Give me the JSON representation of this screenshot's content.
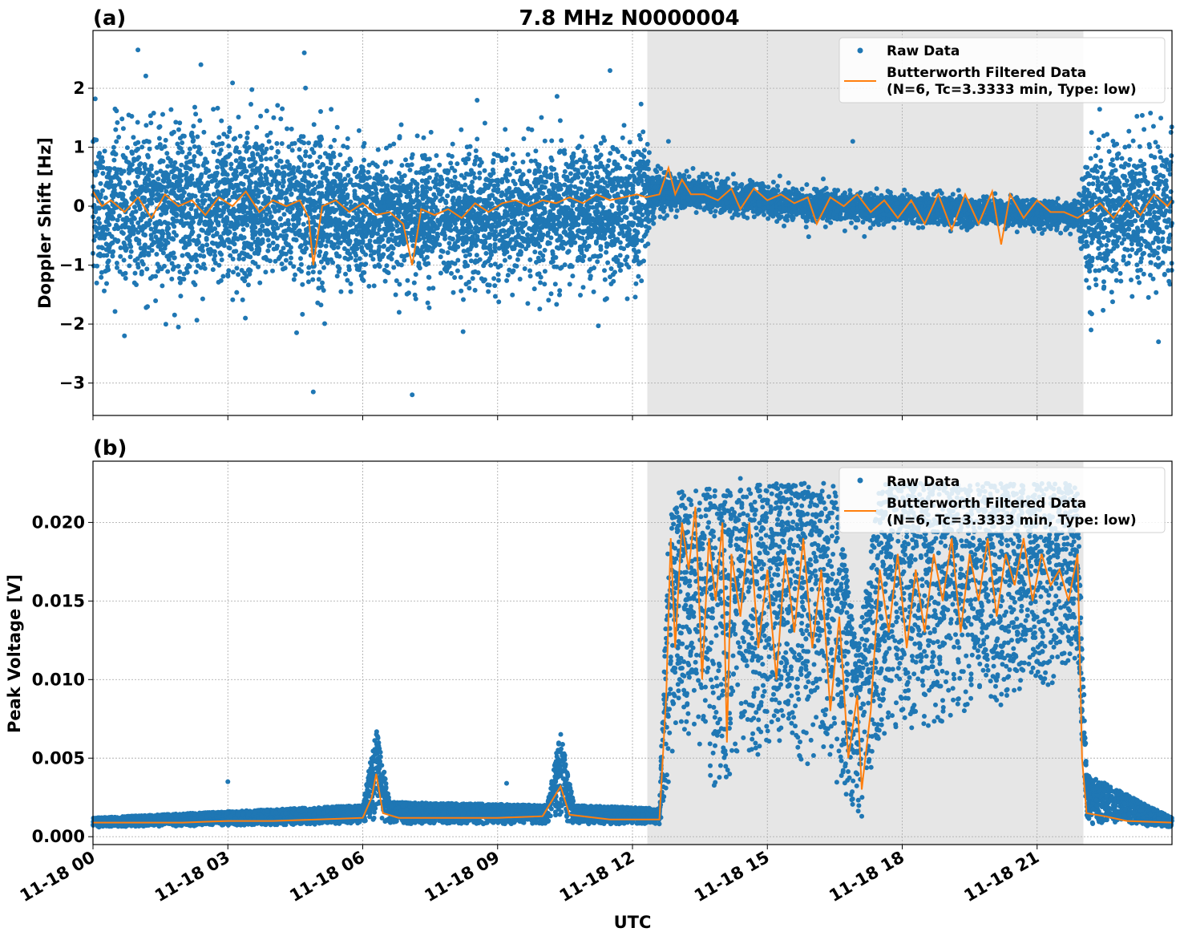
{
  "figure": {
    "title": "7.8 MHz N0000004",
    "xlabel": "UTC"
  },
  "colors": {
    "raw": "#1f77b4",
    "filtered": "#ff7f0e",
    "night_shade": "#e6e6e6",
    "grid": "#b0b0b0"
  },
  "legend": {
    "raw": "Raw Data",
    "filtered_line1": "Butterworth Filtered Data",
    "filtered_line2": "(N=6, Tc=3.3333 min, Type: low)"
  },
  "chart_data": [
    {
      "type": "scatter",
      "panel_label": "(a)",
      "title": "7.8 MHz N0000004",
      "ylabel": "Doppler Shift [Hz]",
      "xlabel": "",
      "x_unit": "hours UTC on 11-18",
      "xlim": [
        0,
        24
      ],
      "ylim": [
        -3.55,
        2.98
      ],
      "yticks": [
        -3,
        -2,
        -1,
        0,
        1,
        2
      ],
      "ytick_labels": [
        "−3",
        "−2",
        "−1",
        "0",
        "1",
        "2"
      ],
      "grid": true,
      "shaded_region": [
        12.33,
        22.03
      ],
      "legend_position": "upper right",
      "series": [
        {
          "name": "Raw Data",
          "style": "points",
          "envelope": [
            {
              "x": 0.0,
              "center": 0.0,
              "spread": 1.3
            },
            {
              "x": 4.8,
              "center": 0.0,
              "spread": 1.25
            },
            {
              "x": 6.2,
              "center": -0.2,
              "spread": 1.0
            },
            {
              "x": 10.5,
              "center": -0.1,
              "spread": 1.05
            },
            {
              "x": 12.2,
              "center": 0.0,
              "spread": 1.2
            },
            {
              "x": 12.4,
              "center": 0.2,
              "spread": 0.4
            },
            {
              "x": 13.0,
              "center": 0.25,
              "spread": 0.25
            },
            {
              "x": 16.0,
              "center": 0.0,
              "spread": 0.25
            },
            {
              "x": 21.9,
              "center": -0.15,
              "spread": 0.2
            },
            {
              "x": 22.1,
              "center": -0.2,
              "spread": 1.1
            },
            {
              "x": 24.0,
              "center": 0.0,
              "spread": 1.2
            }
          ],
          "outliers": [
            [
              1.0,
              2.65
            ],
            [
              0.7,
              -2.2
            ],
            [
              4.9,
              -3.15
            ],
            [
              4.7,
              2.6
            ],
            [
              7.1,
              -3.2
            ],
            [
              2.4,
              2.4
            ],
            [
              11.5,
              2.3
            ],
            [
              1.9,
              -2.05
            ],
            [
              12.8,
              1.1
            ],
            [
              16.9,
              1.1
            ],
            [
              22.2,
              -2.1
            ],
            [
              23.7,
              -2.3
            ]
          ]
        },
        {
          "name": "Butterworth Filtered Data (N=6, Tc=3.3333 min, Type: low)",
          "style": "line",
          "points": [
            [
              0.0,
              0.25
            ],
            [
              0.2,
              0.0
            ],
            [
              0.4,
              0.1
            ],
            [
              0.7,
              -0.1
            ],
            [
              1.0,
              0.15
            ],
            [
              1.3,
              -0.2
            ],
            [
              1.6,
              0.2
            ],
            [
              1.9,
              0.0
            ],
            [
              2.2,
              0.1
            ],
            [
              2.5,
              -0.15
            ],
            [
              2.8,
              0.15
            ],
            [
              3.1,
              0.0
            ],
            [
              3.4,
              0.25
            ],
            [
              3.7,
              -0.1
            ],
            [
              4.0,
              0.1
            ],
            [
              4.3,
              0.0
            ],
            [
              4.6,
              0.1
            ],
            [
              4.8,
              -0.2
            ],
            [
              4.9,
              -1.0
            ],
            [
              5.1,
              0.0
            ],
            [
              5.4,
              0.1
            ],
            [
              5.7,
              -0.1
            ],
            [
              6.0,
              0.05
            ],
            [
              6.3,
              -0.15
            ],
            [
              6.6,
              -0.1
            ],
            [
              6.9,
              -0.3
            ],
            [
              7.1,
              -1.0
            ],
            [
              7.3,
              -0.05
            ],
            [
              7.6,
              -0.15
            ],
            [
              7.9,
              -0.05
            ],
            [
              8.2,
              -0.2
            ],
            [
              8.5,
              0.05
            ],
            [
              8.8,
              -0.1
            ],
            [
              9.1,
              0.05
            ],
            [
              9.4,
              0.1
            ],
            [
              9.7,
              0.0
            ],
            [
              10.0,
              0.1
            ],
            [
              10.3,
              0.05
            ],
            [
              10.6,
              0.15
            ],
            [
              10.9,
              0.05
            ],
            [
              11.2,
              0.2
            ],
            [
              11.5,
              0.1
            ],
            [
              11.8,
              0.15
            ],
            [
              12.1,
              0.2
            ],
            [
              12.3,
              0.15
            ],
            [
              12.6,
              0.2
            ],
            [
              12.8,
              0.65
            ],
            [
              12.95,
              0.2
            ],
            [
              13.1,
              0.45
            ],
            [
              13.3,
              0.2
            ],
            [
              13.6,
              0.2
            ],
            [
              13.9,
              0.1
            ],
            [
              14.2,
              0.3
            ],
            [
              14.4,
              -0.05
            ],
            [
              14.7,
              0.3
            ],
            [
              15.0,
              0.1
            ],
            [
              15.3,
              0.2
            ],
            [
              15.6,
              0.05
            ],
            [
              15.9,
              0.15
            ],
            [
              16.1,
              -0.3
            ],
            [
              16.4,
              0.15
            ],
            [
              16.7,
              0.0
            ],
            [
              17.0,
              0.2
            ],
            [
              17.3,
              -0.1
            ],
            [
              17.6,
              0.1
            ],
            [
              17.9,
              -0.2
            ],
            [
              18.2,
              0.1
            ],
            [
              18.5,
              -0.3
            ],
            [
              18.8,
              0.2
            ],
            [
              19.1,
              -0.4
            ],
            [
              19.4,
              0.2
            ],
            [
              19.7,
              -0.3
            ],
            [
              20.0,
              0.25
            ],
            [
              20.2,
              -0.65
            ],
            [
              20.4,
              0.2
            ],
            [
              20.7,
              -0.2
            ],
            [
              21.0,
              0.1
            ],
            [
              21.3,
              -0.1
            ],
            [
              21.6,
              -0.1
            ],
            [
              21.9,
              -0.2
            ],
            [
              22.1,
              -0.1
            ],
            [
              22.4,
              0.05
            ],
            [
              22.7,
              -0.2
            ],
            [
              23.0,
              0.1
            ],
            [
              23.3,
              -0.15
            ],
            [
              23.6,
              0.2
            ],
            [
              23.9,
              0.0
            ],
            [
              24.0,
              0.1
            ]
          ]
        }
      ]
    },
    {
      "type": "scatter",
      "panel_label": "(b)",
      "title": "",
      "ylabel": "Peak Voltage [V]",
      "xlabel": "UTC",
      "x_unit": "hours UTC on 11-18",
      "xlim": [
        0,
        24
      ],
      "ylim": [
        -0.0005,
        0.0239
      ],
      "yticks": [
        0.0,
        0.005,
        0.01,
        0.015,
        0.02
      ],
      "ytick_labels": [
        "0.000",
        "0.005",
        "0.010",
        "0.015",
        "0.020"
      ],
      "xticks": [
        0,
        3,
        6,
        9,
        12,
        15,
        18,
        21
      ],
      "xtick_labels": [
        "11-18 00",
        "11-18 03",
        "11-18 06",
        "11-18 09",
        "11-18 12",
        "11-18 15",
        "11-18 18",
        "11-18 21"
      ],
      "grid": true,
      "shaded_region": [
        12.33,
        22.03
      ],
      "legend_position": "upper right",
      "series": [
        {
          "name": "Raw Data",
          "style": "points",
          "envelope": [
            {
              "x": 0.0,
              "lo": 0.0006,
              "hi": 0.0012
            },
            {
              "x": 6.0,
              "lo": 0.0008,
              "hi": 0.002
            },
            {
              "x": 6.3,
              "lo": 0.001,
              "hi": 0.0069
            },
            {
              "x": 6.6,
              "lo": 0.0008,
              "hi": 0.0022
            },
            {
              "x": 10.1,
              "lo": 0.0008,
              "hi": 0.002
            },
            {
              "x": 10.4,
              "lo": 0.0012,
              "hi": 0.0068
            },
            {
              "x": 10.7,
              "lo": 0.0008,
              "hi": 0.002
            },
            {
              "x": 12.6,
              "lo": 0.0008,
              "hi": 0.0018
            },
            {
              "x": 12.8,
              "lo": 0.003,
              "hi": 0.02
            },
            {
              "x": 13.0,
              "lo": 0.007,
              "hi": 0.0225
            },
            {
              "x": 14.0,
              "lo": 0.002,
              "hi": 0.022
            },
            {
              "x": 15.0,
              "lo": 0.006,
              "hi": 0.0225
            },
            {
              "x": 16.5,
              "lo": 0.003,
              "hi": 0.0225
            },
            {
              "x": 17.0,
              "lo": 0.0012,
              "hi": 0.012
            },
            {
              "x": 17.5,
              "lo": 0.006,
              "hi": 0.0225
            },
            {
              "x": 20.0,
              "lo": 0.008,
              "hi": 0.0225
            },
            {
              "x": 21.9,
              "lo": 0.01,
              "hi": 0.0225
            },
            {
              "x": 22.1,
              "lo": 0.0008,
              "hi": 0.004
            },
            {
              "x": 24.0,
              "lo": 0.0006,
              "hi": 0.0012
            }
          ],
          "outliers": [
            [
              3.0,
              0.0035
            ],
            [
              9.2,
              0.0034
            ],
            [
              14.4,
              0.0228
            ],
            [
              17.1,
              0.0013
            ]
          ]
        },
        {
          "name": "Butterworth Filtered Data (N=6, Tc=3.3333 min, Type: low)",
          "style": "line",
          "points": [
            [
              0.0,
              0.0009
            ],
            [
              1.0,
              0.0009
            ],
            [
              2.0,
              0.0009
            ],
            [
              3.0,
              0.001
            ],
            [
              4.0,
              0.001
            ],
            [
              5.0,
              0.0011
            ],
            [
              6.0,
              0.0012
            ],
            [
              6.2,
              0.0025
            ],
            [
              6.3,
              0.004
            ],
            [
              6.45,
              0.0015
            ],
            [
              6.8,
              0.0012
            ],
            [
              8.0,
              0.0012
            ],
            [
              9.0,
              0.0012
            ],
            [
              10.0,
              0.0013
            ],
            [
              10.4,
              0.0032
            ],
            [
              10.6,
              0.0014
            ],
            [
              11.5,
              0.0011
            ],
            [
              12.6,
              0.0011
            ],
            [
              12.75,
              0.009
            ],
            [
              12.85,
              0.019
            ],
            [
              12.95,
              0.012
            ],
            [
              13.1,
              0.02
            ],
            [
              13.25,
              0.017
            ],
            [
              13.4,
              0.021
            ],
            [
              13.55,
              0.01
            ],
            [
              13.7,
              0.019
            ],
            [
              13.85,
              0.015
            ],
            [
              14.0,
              0.02
            ],
            [
              14.1,
              0.006
            ],
            [
              14.2,
              0.018
            ],
            [
              14.4,
              0.014
            ],
            [
              14.6,
              0.02
            ],
            [
              14.8,
              0.012
            ],
            [
              15.0,
              0.017
            ],
            [
              15.2,
              0.01
            ],
            [
              15.4,
              0.018
            ],
            [
              15.6,
              0.013
            ],
            [
              15.8,
              0.019
            ],
            [
              16.0,
              0.012
            ],
            [
              16.2,
              0.017
            ],
            [
              16.4,
              0.008
            ],
            [
              16.6,
              0.014
            ],
            [
              16.8,
              0.005
            ],
            [
              17.0,
              0.009
            ],
            [
              17.1,
              0.003
            ],
            [
              17.3,
              0.008
            ],
            [
              17.5,
              0.017
            ],
            [
              17.7,
              0.013
            ],
            [
              17.9,
              0.018
            ],
            [
              18.1,
              0.012
            ],
            [
              18.3,
              0.017
            ],
            [
              18.5,
              0.013
            ],
            [
              18.7,
              0.018
            ],
            [
              18.9,
              0.015
            ],
            [
              19.1,
              0.019
            ],
            [
              19.3,
              0.013
            ],
            [
              19.5,
              0.018
            ],
            [
              19.7,
              0.015
            ],
            [
              19.9,
              0.019
            ],
            [
              20.1,
              0.014
            ],
            [
              20.3,
              0.018
            ],
            [
              20.5,
              0.016
            ],
            [
              20.7,
              0.019
            ],
            [
              20.9,
              0.015
            ],
            [
              21.1,
              0.018
            ],
            [
              21.3,
              0.016
            ],
            [
              21.5,
              0.017
            ],
            [
              21.7,
              0.015
            ],
            [
              21.9,
              0.018
            ],
            [
              22.0,
              0.005
            ],
            [
              22.1,
              0.0015
            ],
            [
              22.5,
              0.0013
            ],
            [
              23.0,
              0.001
            ],
            [
              24.0,
              0.0009
            ]
          ]
        }
      ]
    }
  ]
}
